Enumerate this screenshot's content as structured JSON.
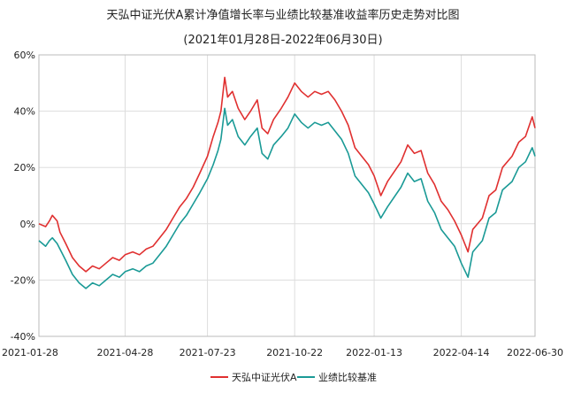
{
  "chart_data": {
    "type": "line",
    "title": "天弘中证光伏A累计净值增长率与业绩比较基准收益率历史走势对比图",
    "subtitle": "(2021年01月28日-2022年06月30日)",
    "y_ticks": [
      "60%",
      "40%",
      "20%",
      "0%",
      "-20%",
      "-40%"
    ],
    "ylim": [
      -40,
      60
    ],
    "x_ticks": [
      "2021-01-28",
      "2021-04-28",
      "2021-07-23",
      "2021-10-22",
      "2022-01-13",
      "2022-04-14",
      "2022-06-30"
    ],
    "legend_position": "bottom",
    "grid": true,
    "colors": {
      "fund": "#e03030",
      "benchmark": "#1a9a96"
    },
    "series": [
      {
        "name": "天弘中证光伏A",
        "points": [
          [
            "2021-01-28",
            0
          ],
          [
            "2021-02-04",
            -1
          ],
          [
            "2021-02-08",
            1
          ],
          [
            "2021-02-11",
            3
          ],
          [
            "2021-02-16",
            1
          ],
          [
            "2021-02-19",
            -3
          ],
          [
            "2021-02-25",
            -7
          ],
          [
            "2021-03-04",
            -12
          ],
          [
            "2021-03-11",
            -15
          ],
          [
            "2021-03-18",
            -17
          ],
          [
            "2021-03-25",
            -15
          ],
          [
            "2021-04-01",
            -16
          ],
          [
            "2021-04-08",
            -14
          ],
          [
            "2021-04-15",
            -12
          ],
          [
            "2021-04-22",
            -13
          ],
          [
            "2021-04-28",
            -11
          ],
          [
            "2021-05-06",
            -10
          ],
          [
            "2021-05-13",
            -11
          ],
          [
            "2021-05-20",
            -9
          ],
          [
            "2021-05-27",
            -8
          ],
          [
            "2021-06-03",
            -5
          ],
          [
            "2021-06-10",
            -2
          ],
          [
            "2021-06-17",
            2
          ],
          [
            "2021-06-24",
            6
          ],
          [
            "2021-07-01",
            9
          ],
          [
            "2021-07-08",
            13
          ],
          [
            "2021-07-15",
            18
          ],
          [
            "2021-07-23",
            24
          ],
          [
            "2021-07-29",
            31
          ],
          [
            "2021-08-03",
            36
          ],
          [
            "2021-08-06",
            40
          ],
          [
            "2021-08-10",
            52
          ],
          [
            "2021-08-13",
            45
          ],
          [
            "2021-08-18",
            47
          ],
          [
            "2021-08-24",
            41
          ],
          [
            "2021-08-31",
            37
          ],
          [
            "2021-09-06",
            40
          ],
          [
            "2021-09-13",
            44
          ],
          [
            "2021-09-18",
            34
          ],
          [
            "2021-09-24",
            32
          ],
          [
            "2021-09-30",
            37
          ],
          [
            "2021-10-08",
            41
          ],
          [
            "2021-10-15",
            45
          ],
          [
            "2021-10-22",
            50
          ],
          [
            "2021-10-29",
            47
          ],
          [
            "2021-11-05",
            45
          ],
          [
            "2021-11-12",
            47
          ],
          [
            "2021-11-19",
            46
          ],
          [
            "2021-11-26",
            47
          ],
          [
            "2021-12-03",
            44
          ],
          [
            "2021-12-10",
            40
          ],
          [
            "2021-12-17",
            35
          ],
          [
            "2021-12-24",
            27
          ],
          [
            "2021-12-31",
            24
          ],
          [
            "2022-01-07",
            21
          ],
          [
            "2022-01-13",
            17
          ],
          [
            "2022-01-20",
            10
          ],
          [
            "2022-01-27",
            15
          ],
          [
            "2022-02-10",
            22
          ],
          [
            "2022-02-17",
            28
          ],
          [
            "2022-02-24",
            25
          ],
          [
            "2022-03-03",
            26
          ],
          [
            "2022-03-10",
            18
          ],
          [
            "2022-03-17",
            14
          ],
          [
            "2022-03-24",
            8
          ],
          [
            "2022-03-31",
            5
          ],
          [
            "2022-04-07",
            1
          ],
          [
            "2022-04-14",
            -4
          ],
          [
            "2022-04-21",
            -10
          ],
          [
            "2022-04-26",
            -2
          ],
          [
            "2022-05-06",
            2
          ],
          [
            "2022-05-13",
            10
          ],
          [
            "2022-05-20",
            12
          ],
          [
            "2022-05-27",
            20
          ],
          [
            "2022-06-06",
            24
          ],
          [
            "2022-06-13",
            29
          ],
          [
            "2022-06-20",
            31
          ],
          [
            "2022-06-27",
            38
          ],
          [
            "2022-06-30",
            34
          ]
        ]
      },
      {
        "name": "业绩比较基准",
        "points": [
          [
            "2021-01-28",
            -6
          ],
          [
            "2021-02-04",
            -8
          ],
          [
            "2021-02-08",
            -6
          ],
          [
            "2021-02-11",
            -5
          ],
          [
            "2021-02-16",
            -7
          ],
          [
            "2021-02-19",
            -9
          ],
          [
            "2021-02-25",
            -13
          ],
          [
            "2021-03-04",
            -18
          ],
          [
            "2021-03-11",
            -21
          ],
          [
            "2021-03-18",
            -23
          ],
          [
            "2021-03-25",
            -21
          ],
          [
            "2021-04-01",
            -22
          ],
          [
            "2021-04-08",
            -20
          ],
          [
            "2021-04-15",
            -18
          ],
          [
            "2021-04-22",
            -19
          ],
          [
            "2021-04-28",
            -17
          ],
          [
            "2021-05-06",
            -16
          ],
          [
            "2021-05-13",
            -17
          ],
          [
            "2021-05-20",
            -15
          ],
          [
            "2021-05-27",
            -14
          ],
          [
            "2021-06-03",
            -11
          ],
          [
            "2021-06-10",
            -8
          ],
          [
            "2021-06-17",
            -4
          ],
          [
            "2021-06-24",
            0
          ],
          [
            "2021-07-01",
            3
          ],
          [
            "2021-07-08",
            7
          ],
          [
            "2021-07-15",
            11
          ],
          [
            "2021-07-23",
            16
          ],
          [
            "2021-07-29",
            21
          ],
          [
            "2021-08-03",
            26
          ],
          [
            "2021-08-06",
            30
          ],
          [
            "2021-08-10",
            41
          ],
          [
            "2021-08-13",
            35
          ],
          [
            "2021-08-18",
            37
          ],
          [
            "2021-08-24",
            31
          ],
          [
            "2021-08-31",
            28
          ],
          [
            "2021-09-06",
            31
          ],
          [
            "2021-09-13",
            34
          ],
          [
            "2021-09-18",
            25
          ],
          [
            "2021-09-24",
            23
          ],
          [
            "2021-09-30",
            28
          ],
          [
            "2021-10-08",
            31
          ],
          [
            "2021-10-15",
            34
          ],
          [
            "2021-10-22",
            39
          ],
          [
            "2021-10-29",
            36
          ],
          [
            "2021-11-05",
            34
          ],
          [
            "2021-11-12",
            36
          ],
          [
            "2021-11-19",
            35
          ],
          [
            "2021-11-26",
            36
          ],
          [
            "2021-12-03",
            33
          ],
          [
            "2021-12-10",
            30
          ],
          [
            "2021-12-17",
            25
          ],
          [
            "2021-12-24",
            17
          ],
          [
            "2021-12-31",
            14
          ],
          [
            "2022-01-07",
            11
          ],
          [
            "2022-01-13",
            7
          ],
          [
            "2022-01-20",
            2
          ],
          [
            "2022-01-27",
            6
          ],
          [
            "2022-02-10",
            13
          ],
          [
            "2022-02-17",
            18
          ],
          [
            "2022-02-24",
            15
          ],
          [
            "2022-03-03",
            16
          ],
          [
            "2022-03-10",
            8
          ],
          [
            "2022-03-17",
            4
          ],
          [
            "2022-03-24",
            -2
          ],
          [
            "2022-03-31",
            -5
          ],
          [
            "2022-04-07",
            -8
          ],
          [
            "2022-04-14",
            -14
          ],
          [
            "2022-04-21",
            -19
          ],
          [
            "2022-04-26",
            -10
          ],
          [
            "2022-05-06",
            -6
          ],
          [
            "2022-05-13",
            2
          ],
          [
            "2022-05-20",
            4
          ],
          [
            "2022-05-27",
            12
          ],
          [
            "2022-06-06",
            15
          ],
          [
            "2022-06-13",
            20
          ],
          [
            "2022-06-20",
            22
          ],
          [
            "2022-06-27",
            27
          ],
          [
            "2022-06-30",
            24
          ]
        ]
      }
    ]
  }
}
